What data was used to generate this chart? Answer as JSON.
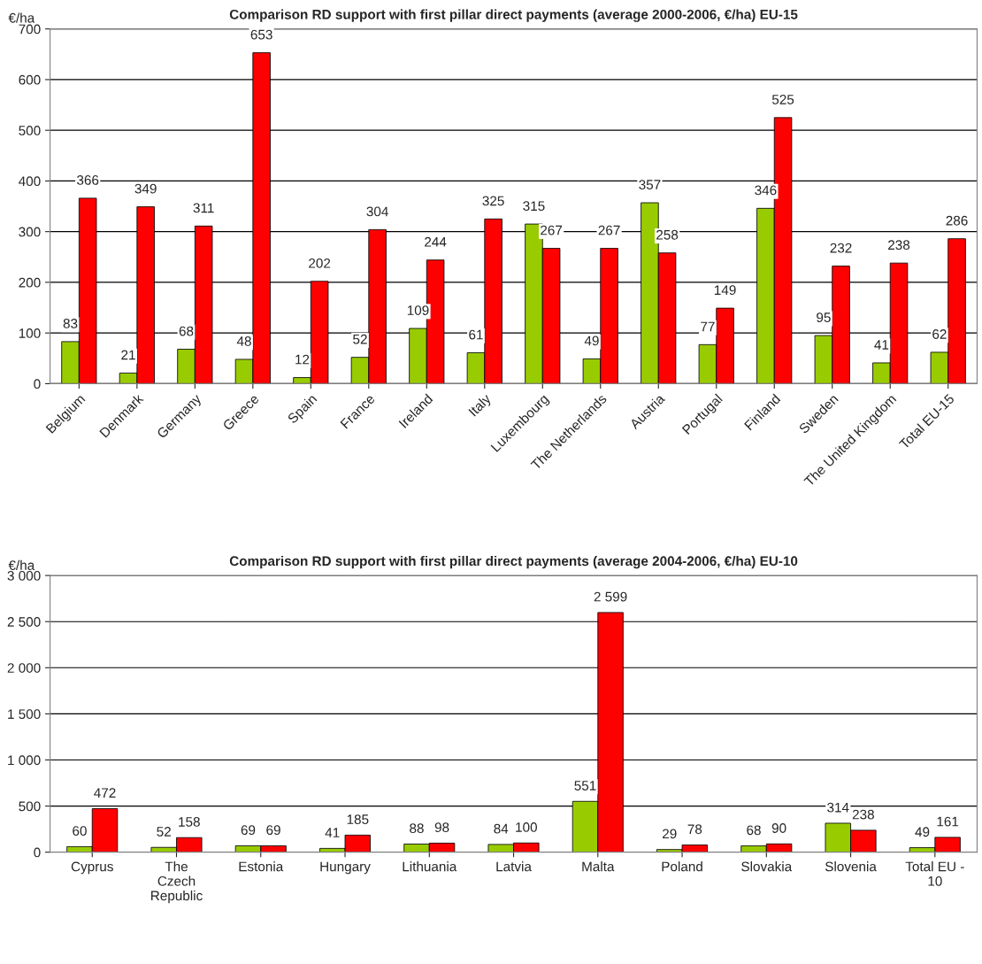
{
  "chart_data": [
    {
      "type": "bar",
      "title": "Comparison RD support with first pillar direct payments (average 2000-2006, €/ha) EU-15",
      "ylabel": "€/ha",
      "categories": [
        "Belgium",
        "Denmark",
        "Germany",
        "Greece",
        "Spain",
        "France",
        "Ireland",
        "Italy",
        "Luxembourg",
        "The Netherlands",
        "Austria",
        "Portugal",
        "Finland",
        "Sweden",
        "The United Kingdom",
        "Total EU-15"
      ],
      "series": [
        {
          "color": "#99cc00",
          "values": [
            83,
            21,
            68,
            48,
            12,
            52,
            109,
            61,
            315,
            49,
            357,
            77,
            346,
            95,
            41,
            62
          ]
        },
        {
          "color": "#ff0000",
          "values": [
            366,
            349,
            311,
            653,
            202,
            304,
            244,
            325,
            267,
            267,
            258,
            149,
            525,
            232,
            238,
            286
          ]
        }
      ],
      "ylim": [
        0,
        700
      ],
      "yticks": [
        0,
        100,
        200,
        300,
        400,
        500,
        600,
        700
      ],
      "grid": "y",
      "legend": false,
      "data_labels": true
    },
    {
      "type": "bar",
      "title": "Comparison RD support with first pillar direct payments (average 2004-2006, €/ha) EU-10",
      "ylabel": "€/ha",
      "categories": [
        "Cyprus",
        "The\nCzech\nRepublic",
        "Estonia",
        "Hungary",
        "Lithuania",
        "Latvia",
        "Malta",
        "Poland",
        "Slovakia",
        "Slovenia",
        "Total EU -\n10"
      ],
      "series": [
        {
          "color": "#99cc00",
          "values": [
            60,
            52,
            69,
            41,
            88,
            84,
            551,
            29,
            68,
            314,
            49
          ],
          "value_labels": [
            "60",
            "52",
            "69",
            "41",
            "88",
            "84",
            "551",
            "29",
            "68",
            "314",
            "49"
          ]
        },
        {
          "color": "#ff0000",
          "values": [
            472,
            158,
            69,
            185,
            98,
            100,
            2599,
            78,
            90,
            238,
            161
          ],
          "value_labels": [
            "472",
            "158",
            "69",
            "185",
            "98",
            "100",
            "2 599",
            "78",
            "90",
            "238",
            "161"
          ]
        }
      ],
      "ylim": [
        0,
        3000
      ],
      "yticks": [
        0,
        500,
        {
          "value": 1000,
          "label": "1 000"
        },
        {
          "value": 1500,
          "label": "1 500"
        },
        {
          "value": 2000,
          "label": "2 000"
        },
        {
          "value": 2500,
          "label": "2 500"
        },
        {
          "value": 3000,
          "label": "3 000"
        }
      ],
      "grid": "y",
      "legend": false
    }
  ]
}
